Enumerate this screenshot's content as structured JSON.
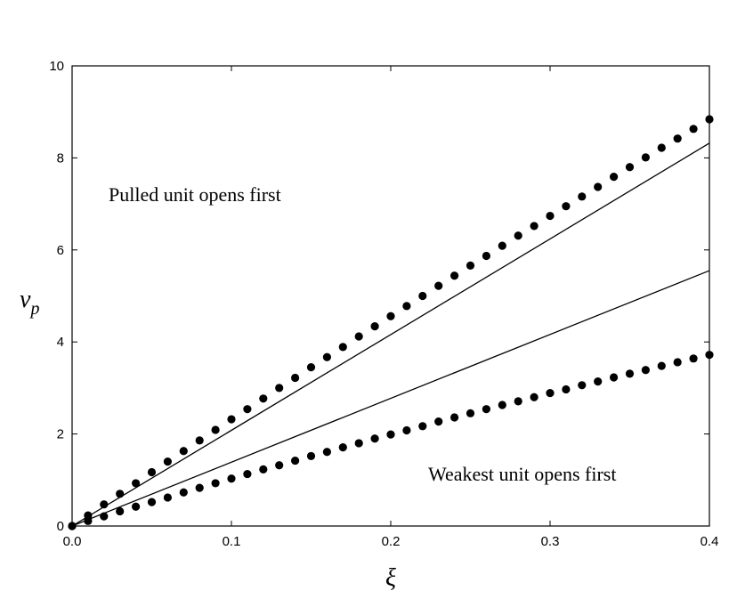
{
  "chart_data": {
    "type": "scatter",
    "x_label": "ξ",
    "y_label": {
      "base": "v",
      "subscript": "p"
    },
    "annotations": [
      "Pulled unit opens first",
      "Weakest unit opens first"
    ],
    "xlim": [
      0,
      0.4
    ],
    "ylim": [
      0,
      10
    ],
    "xticks": [
      {
        "value": 0,
        "label": "0.0"
      },
      0.1,
      0.2,
      0.3,
      0.4
    ],
    "yticks": [
      0,
      2,
      4,
      6,
      8,
      10
    ],
    "grid": false,
    "series": [
      {
        "style": "markers",
        "color": "#000000",
        "x": [
          0,
          0.01,
          0.02,
          0.03,
          0.04,
          0.05,
          0.06,
          0.07,
          0.08,
          0.09,
          0.1,
          0.11,
          0.12,
          0.13,
          0.14,
          0.15,
          0.16,
          0.17,
          0.18,
          0.19,
          0.2,
          0.21,
          0.22,
          0.23,
          0.24,
          0.25,
          0.26,
          0.27,
          0.28,
          0.29,
          0.3,
          0.31,
          0.32,
          0.33,
          0.34,
          0.35,
          0.36,
          0.37,
          0.38,
          0.39,
          0.4
        ],
        "values": [
          0,
          0.23,
          0.47,
          0.7,
          0.93,
          1.17,
          1.4,
          1.63,
          1.86,
          2.09,
          2.32,
          2.54,
          2.77,
          3.0,
          3.22,
          3.45,
          3.67,
          3.89,
          4.12,
          4.34,
          4.56,
          4.78,
          5.0,
          5.22,
          5.44,
          5.66,
          5.87,
          6.09,
          6.31,
          6.52,
          6.74,
          6.95,
          7.16,
          7.37,
          7.59,
          7.8,
          8.01,
          8.22,
          8.42,
          8.63,
          8.84
        ]
      },
      {
        "style": "markers",
        "color": "#000000",
        "x": [
          0,
          0.01,
          0.02,
          0.03,
          0.04,
          0.05,
          0.06,
          0.07,
          0.08,
          0.09,
          0.1,
          0.11,
          0.12,
          0.13,
          0.14,
          0.15,
          0.16,
          0.17,
          0.18,
          0.19,
          0.2,
          0.21,
          0.22,
          0.23,
          0.24,
          0.25,
          0.26,
          0.27,
          0.28,
          0.29,
          0.3,
          0.31,
          0.32,
          0.33,
          0.34,
          0.35,
          0.36,
          0.37,
          0.38,
          0.39,
          0.4
        ],
        "values": [
          0,
          0.11,
          0.21,
          0.32,
          0.42,
          0.52,
          0.62,
          0.73,
          0.83,
          0.93,
          1.03,
          1.13,
          1.23,
          1.32,
          1.42,
          1.52,
          1.61,
          1.71,
          1.8,
          1.9,
          1.99,
          2.08,
          2.17,
          2.27,
          2.36,
          2.45,
          2.54,
          2.63,
          2.71,
          2.8,
          2.89,
          2.97,
          3.06,
          3.14,
          3.23,
          3.31,
          3.39,
          3.48,
          3.56,
          3.64,
          3.72
        ]
      },
      {
        "style": "line",
        "color": "#000000",
        "x": [
          0,
          0.4
        ],
        "values": [
          0,
          8.32
        ]
      },
      {
        "style": "line",
        "color": "#000000",
        "x": [
          0,
          0.4
        ],
        "values": [
          0,
          5.55
        ]
      }
    ]
  }
}
